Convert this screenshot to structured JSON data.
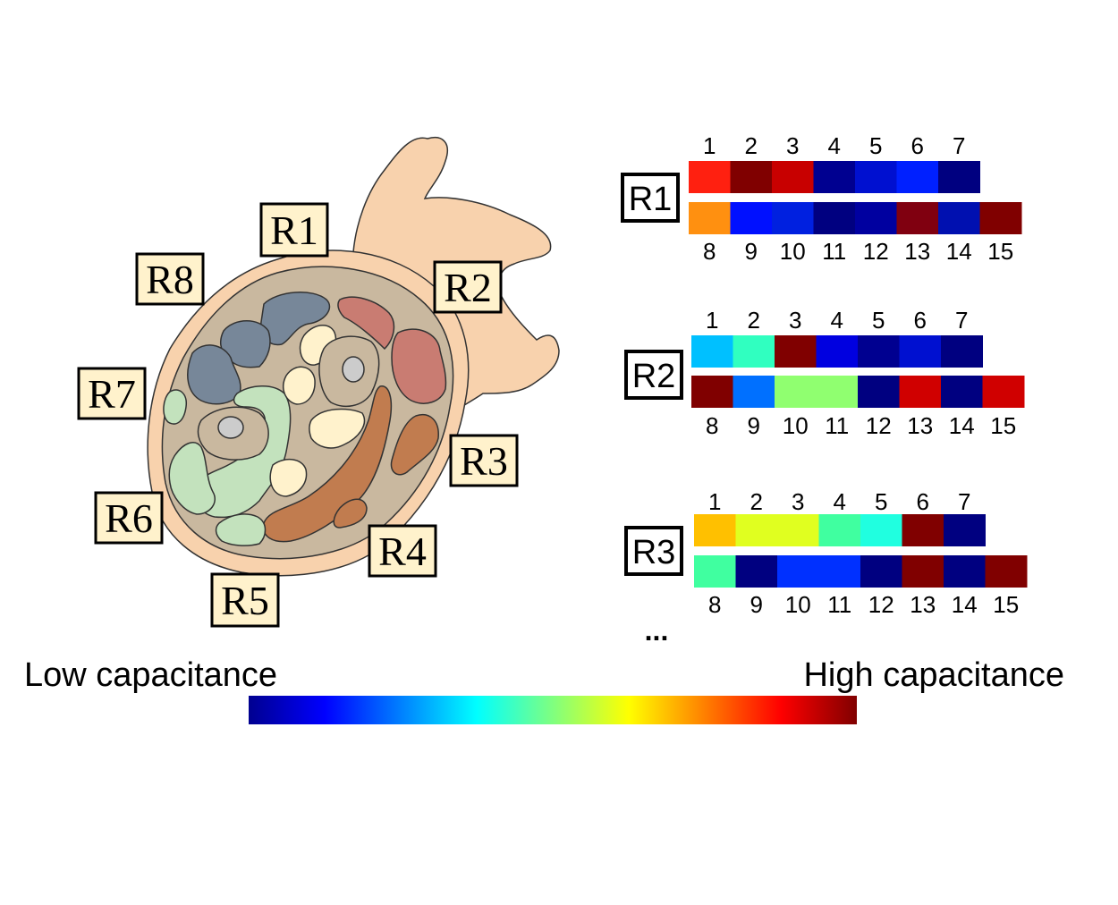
{
  "hand": {
    "regions": [
      {
        "id": "R1",
        "label": "R1"
      },
      {
        "id": "R2",
        "label": "R2"
      },
      {
        "id": "R3",
        "label": "R3"
      },
      {
        "id": "R4",
        "label": "R4"
      },
      {
        "id": "R5",
        "label": "R5"
      },
      {
        "id": "R6",
        "label": "R6"
      },
      {
        "id": "R7",
        "label": "R7"
      },
      {
        "id": "R8",
        "label": "R8"
      }
    ],
    "colors": {
      "skin": "#f8d2ad",
      "tissue": "#c9b89f",
      "muscle_blue": "#778799",
      "muscle_red": "#c97c72",
      "muscle_brown": "#c17c4f",
      "muscle_green": "#c3e2bd",
      "tendon": "#fff2cc",
      "bone": "#cccccc"
    }
  },
  "maps": {
    "cell_colors": [
      "#000090",
      "#0000ff",
      "#0090ff",
      "#00ffff",
      "#90ff70",
      "#ffff00",
      "#ff9000",
      "#ff0000",
      "#800000"
    ],
    "rows": [
      {
        "region": "R1",
        "top_numbers": [
          "1",
          "2",
          "3",
          "4",
          "5",
          "6",
          "7"
        ],
        "bottom_numbers": [
          "8",
          "9",
          "10",
          "11",
          "12",
          "13",
          "14",
          "15"
        ],
        "top_colors": [
          "#ff2010",
          "#800000",
          "#c80000",
          "#000090",
          "#0010d0",
          "#0020ff",
          "#000080"
        ],
        "bottom_colors": [
          "#ff9010",
          "#0010ff",
          "#0020e0",
          "#000080",
          "#0000a0",
          "#800010",
          "#0010b0",
          "#800000"
        ]
      },
      {
        "region": "R2",
        "top_numbers": [
          "1",
          "2",
          "3",
          "4",
          "5",
          "6",
          "7"
        ],
        "bottom_numbers": [
          "8",
          "9",
          "10",
          "11",
          "12",
          "13",
          "14",
          "15"
        ],
        "top_colors": [
          "#00c0ff",
          "#30ffc0",
          "#800000",
          "#0000e0",
          "#000090",
          "#0010d0",
          "#000080"
        ],
        "bottom_colors": [
          "#800000",
          "#0070ff",
          "#90ff70",
          "#90ff70",
          "#000080",
          "#d00000",
          "#000080",
          "#d00000"
        ]
      },
      {
        "region": "R3",
        "top_numbers": [
          "1",
          "2",
          "3",
          "4",
          "5",
          "6",
          "7"
        ],
        "bottom_numbers": [
          "8",
          "9",
          "10",
          "11",
          "12",
          "13",
          "14",
          "15"
        ],
        "top_colors": [
          "#ffc000",
          "#e0ff20",
          "#e0ff20",
          "#40ffa0",
          "#20ffe0",
          "#800000",
          "#000080"
        ],
        "bottom_colors": [
          "#40ffa0",
          "#000080",
          "#0030ff",
          "#0030ff",
          "#000080",
          "#800000",
          "#000080",
          "#800000"
        ]
      }
    ],
    "ellipsis": "..."
  },
  "legend": {
    "low_label": "Low capacitance",
    "high_label": "High capacitance"
  }
}
